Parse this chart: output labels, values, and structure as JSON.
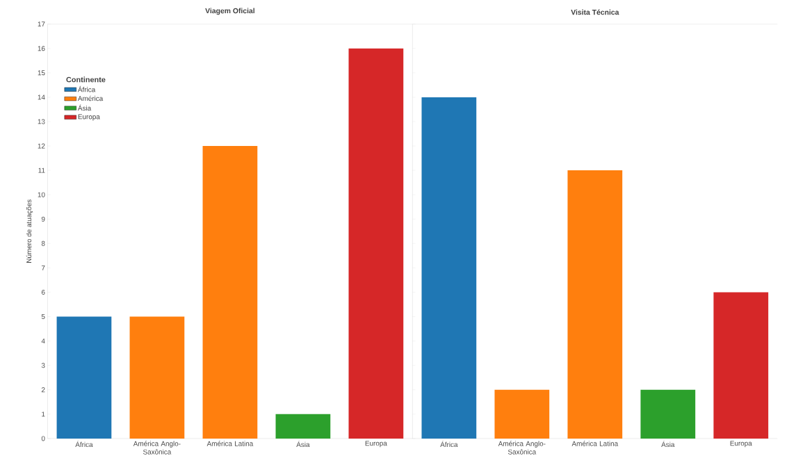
{
  "chart_data": [
    {
      "type": "bar",
      "title": "Viagem Oficial",
      "ylabel": "Número de atuações",
      "categories": [
        "África",
        "América Anglo-Saxônica",
        "América Latina",
        "Ásia",
        "Europa"
      ],
      "series": [
        {
          "name": "África",
          "color": "#1f77b4",
          "values": [
            5,
            null,
            null,
            null,
            null
          ]
        },
        {
          "name": "América",
          "color": "#ff7f0e",
          "values": [
            null,
            5,
            12,
            null,
            null
          ]
        },
        {
          "name": "Ásia",
          "color": "#2ca02c",
          "values": [
            null,
            null,
            null,
            1,
            null
          ]
        },
        {
          "name": "Europa",
          "color": "#d62728",
          "values": [
            null,
            null,
            null,
            null,
            16
          ]
        }
      ],
      "legend": "top left",
      "legend_title": "Continente",
      "ylim": [
        0,
        17
      ],
      "yticks": [
        0,
        1,
        2,
        3,
        4,
        5,
        6,
        7,
        8,
        9,
        10,
        11,
        12,
        13,
        14,
        15,
        16,
        17
      ]
    },
    {
      "type": "bar",
      "title": "Visita Técnica",
      "categories": [
        "África",
        "América Anglo-Saxônica",
        "América Latina",
        "Ásia",
        "Europa"
      ],
      "values": [
        14,
        2,
        11,
        2,
        6
      ],
      "colors": [
        "#1f77b4",
        "#ff7f0e",
        "#ff7f0e",
        "#2ca02c",
        "#d62728"
      ],
      "ylim": [
        0,
        17
      ],
      "yticks": [
        0,
        1,
        2,
        3,
        4,
        5,
        6,
        7,
        8,
        9,
        10,
        11,
        12,
        13,
        14,
        15,
        16,
        17
      ],
      "tick_labels": "x"
    }
  ]
}
